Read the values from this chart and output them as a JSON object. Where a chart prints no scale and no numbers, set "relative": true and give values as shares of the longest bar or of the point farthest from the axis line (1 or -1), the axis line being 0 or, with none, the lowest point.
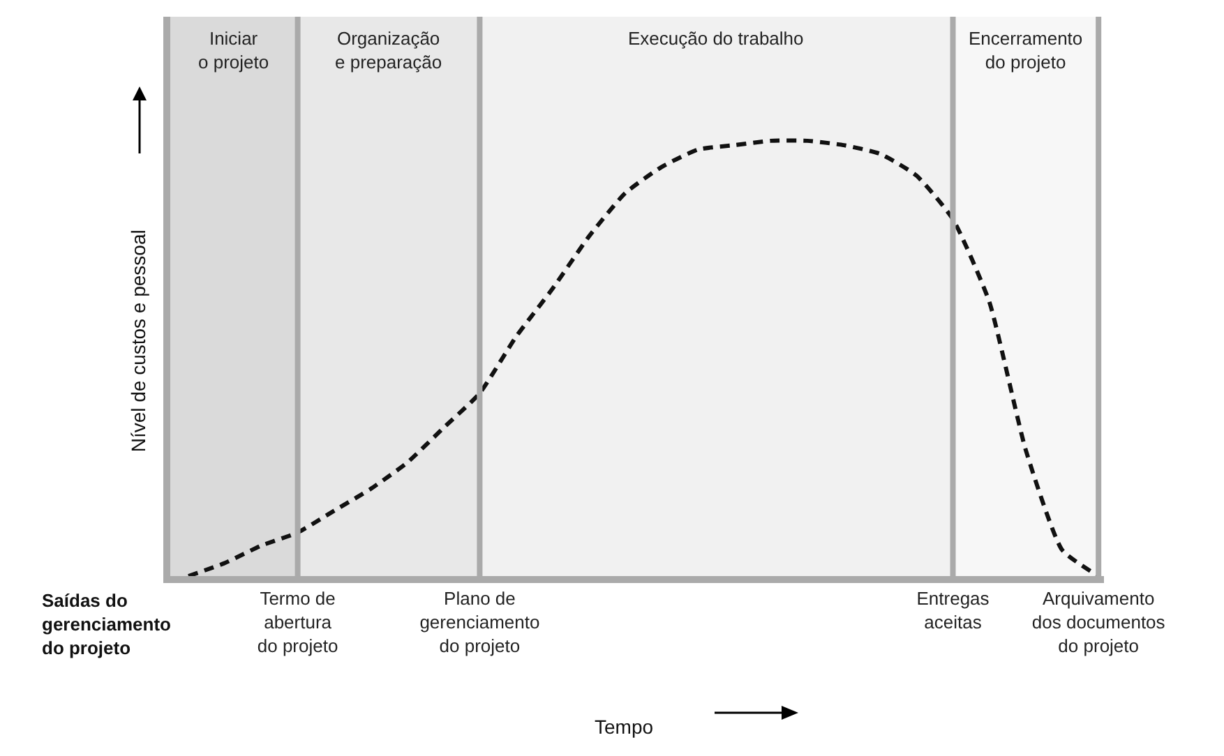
{
  "chart_data": {
    "type": "line",
    "relative": true,
    "ylabel": "Nível de custos e pessoal",
    "categories": [
      null,
      null,
      null,
      "Termo de\nabertura\ndo projeto",
      null,
      null,
      null,
      null,
      "Plano de\ngerenciamento\ndo projeto",
      null,
      null,
      null,
      null,
      null,
      null,
      null,
      null,
      null,
      null,
      null,
      null,
      "Entregas\naceitas",
      null,
      null,
      null,
      "Arquivamento\ndos documentos\ndo projeto"
    ],
    "series": [
      {
        "color": "#111111",
        "values": [
          0.0,
          0.03,
          0.07,
          0.1,
          0.15,
          0.2,
          0.26,
          0.34,
          0.42,
          0.55,
          0.66,
          0.78,
          0.88,
          0.94,
          0.98,
          0.99,
          1.0,
          1.0,
          0.99,
          0.97,
          0.92,
          0.82,
          0.63,
          0.29,
          0.06,
          0.0
        ]
      }
    ],
    "line_style": "dashed",
    "marker": "none",
    "ref_lines": [
      {
        "axis": "x",
        "value": "Termo de\nabertura\ndo projeto",
        "color": "#aaaaaa"
      },
      {
        "axis": "x",
        "value": "Plano de\ngerenciamento\ndo projeto",
        "color": "#aaaaaa"
      },
      {
        "axis": "x",
        "value": "Entregas\naceitas",
        "color": "#aaaaaa"
      },
      {
        "axis": "x",
        "value": "Arquivamento\ndos documentos\ndo projeto",
        "color": "#aaaaaa"
      }
    ],
    "annotations": [
      "Iniciar\no projeto",
      "Organização\ne preparação",
      "Execução do trabalho",
      "Encerramento\ndo projeto",
      "Saídas do\ngerenciamento\ndo projeto",
      "Tempo"
    ]
  }
}
